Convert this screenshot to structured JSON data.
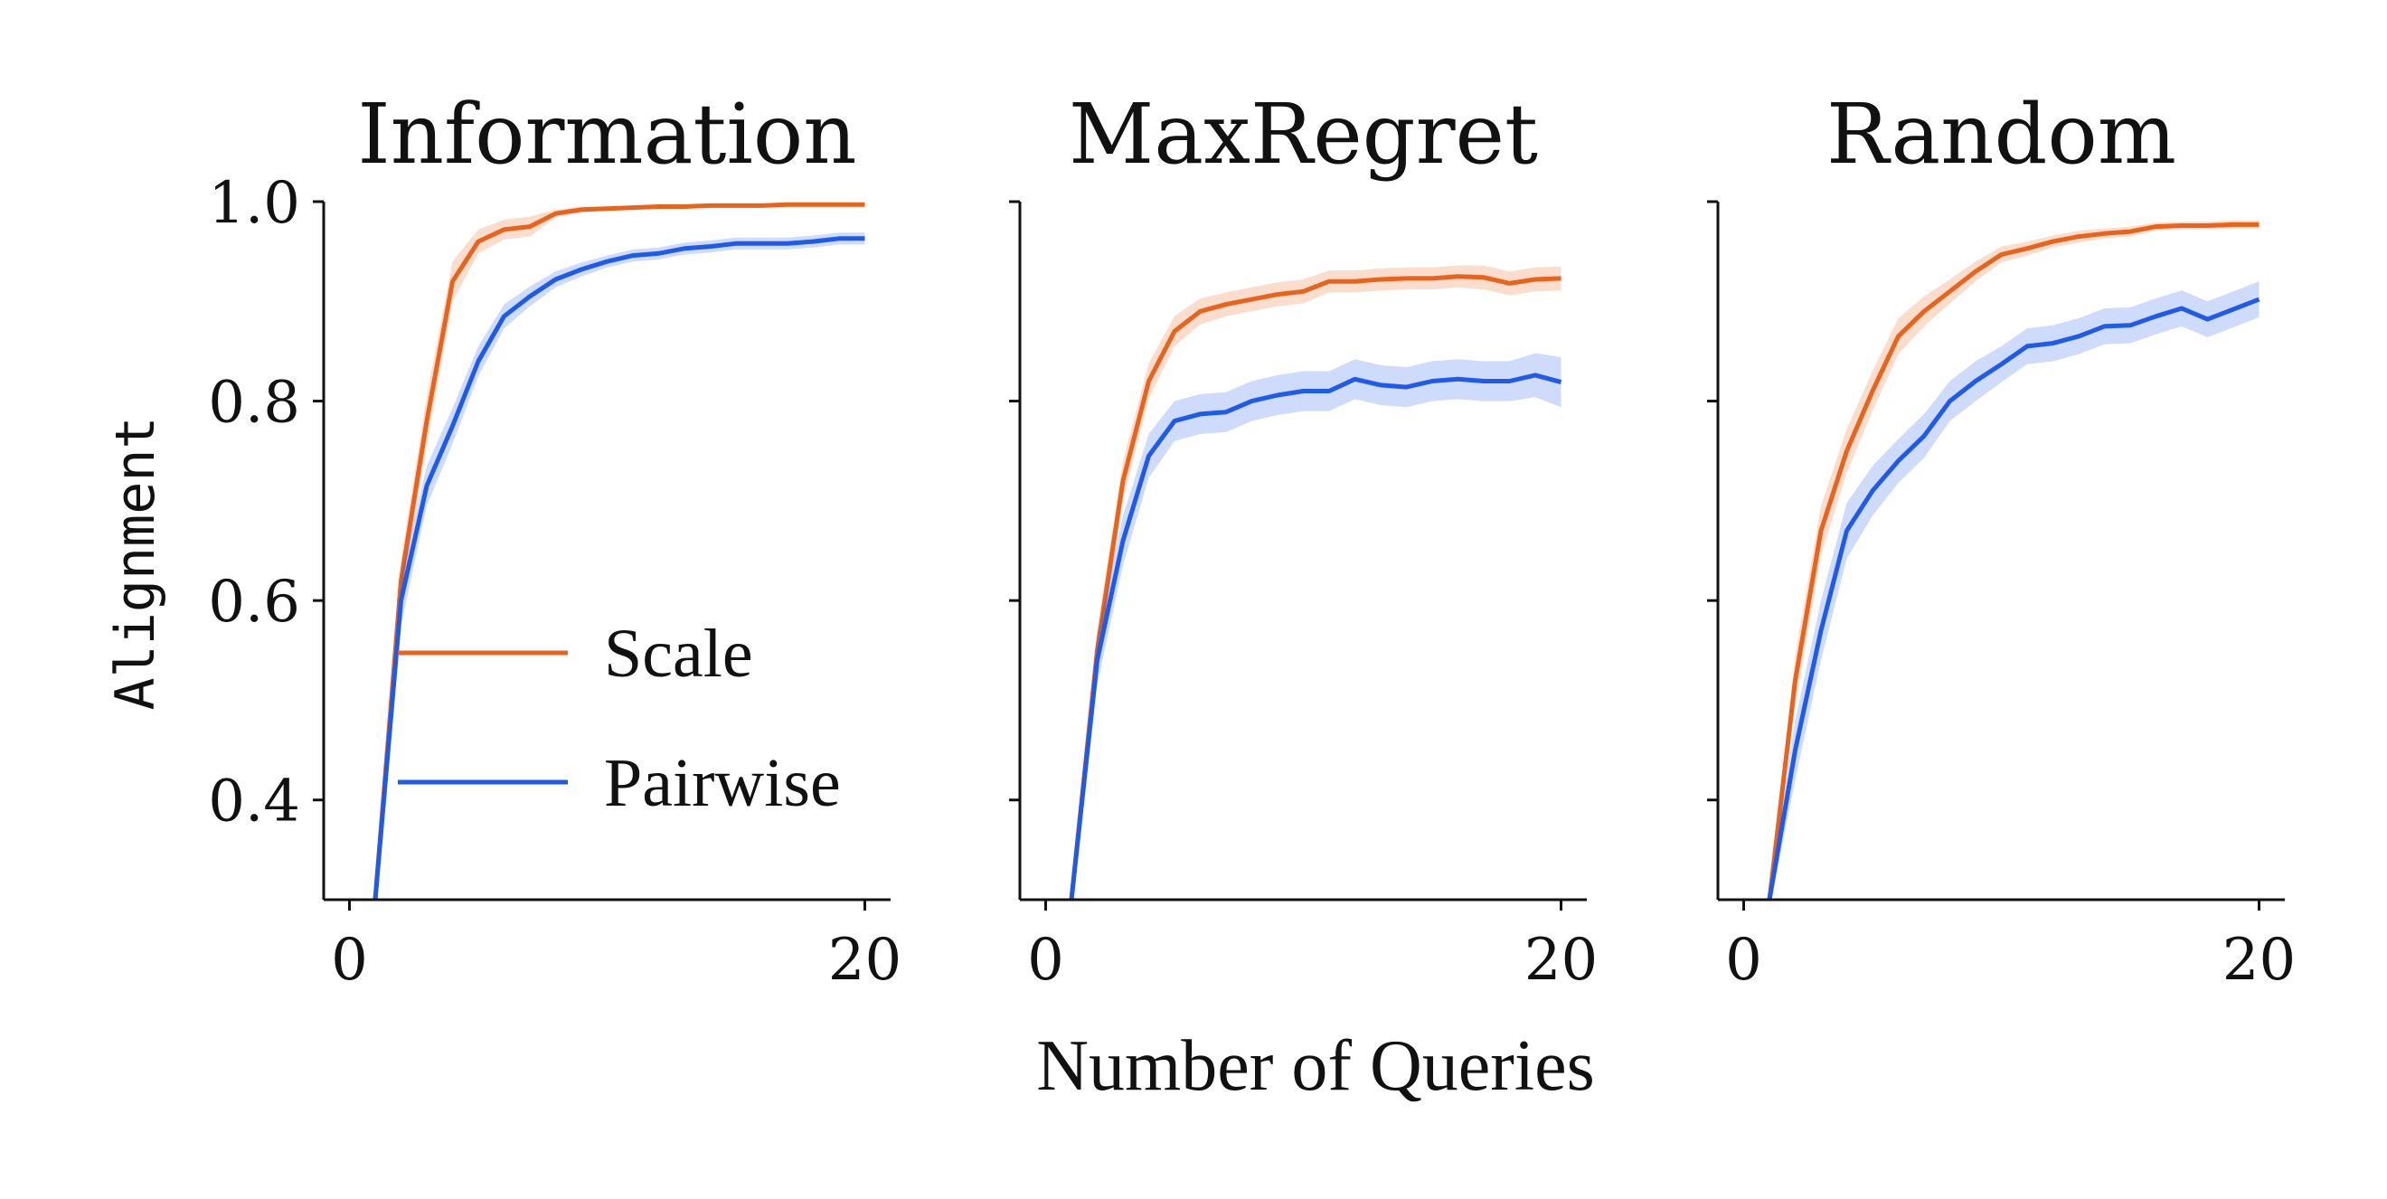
{
  "chart_data": {
    "type": "line",
    "shared_xlabel": "Number of Queries",
    "shared_ylabel": "Alignment",
    "ylim": [
      0.3,
      1.0
    ],
    "xlim": [
      -1,
      21
    ],
    "yticks": [
      0.4,
      0.6,
      0.8,
      1.0
    ],
    "ytick_labels": [
      "0.4",
      "0.6",
      "0.8",
      "1.0"
    ],
    "xticks": [
      0,
      20
    ],
    "xtick_labels": [
      "0",
      "20"
    ],
    "legend": {
      "location": "lower-right of first panel",
      "entries": [
        "Scale",
        "Pairwise"
      ]
    },
    "colors": {
      "Scale": "#e8631c",
      "Pairwise": "#1f5ae8"
    },
    "x": [
      1,
      2,
      3,
      4,
      5,
      6,
      7,
      8,
      9,
      10,
      11,
      12,
      13,
      14,
      15,
      16,
      17,
      18,
      19,
      20
    ],
    "panels": [
      {
        "title": "Information",
        "series": [
          {
            "name": "Scale",
            "values": [
              0.3,
              0.62,
              0.78,
              0.92,
              0.96,
              0.972,
              0.975,
              0.988,
              0.992,
              0.993,
              0.994,
              0.995,
              0.995,
              0.996,
              0.996,
              0.996,
              0.997,
              0.997,
              0.997,
              0.997
            ],
            "band": [
              0.005,
              0.02,
              0.025,
              0.02,
              0.012,
              0.01,
              0.01,
              0.004,
              0.003,
              0.002,
              0.002,
              0.002,
              0.002,
              0.002,
              0.002,
              0.002,
              0.002,
              0.002,
              0.002,
              0.002
            ]
          },
          {
            "name": "Pairwise",
            "values": [
              0.3,
              0.6,
              0.715,
              0.775,
              0.84,
              0.885,
              0.905,
              0.922,
              0.932,
              0.94,
              0.946,
              0.948,
              0.953,
              0.955,
              0.958,
              0.958,
              0.958,
              0.96,
              0.963,
              0.963
            ],
            "band": [
              0.005,
              0.025,
              0.02,
              0.018,
              0.015,
              0.012,
              0.01,
              0.008,
              0.007,
              0.006,
              0.006,
              0.006,
              0.006,
              0.006,
              0.006,
              0.006,
              0.006,
              0.006,
              0.006,
              0.006
            ]
          }
        ]
      },
      {
        "title": "MaxRegret",
        "series": [
          {
            "name": "Scale",
            "values": [
              0.3,
              0.55,
              0.72,
              0.82,
              0.87,
              0.89,
              0.897,
              0.902,
              0.907,
              0.91,
              0.92,
              0.92,
              0.922,
              0.923,
              0.923,
              0.925,
              0.924,
              0.918,
              0.922,
              0.923
            ],
            "band": [
              0.01,
              0.02,
              0.02,
              0.018,
              0.015,
              0.013,
              0.012,
              0.012,
              0.012,
              0.012,
              0.011,
              0.011,
              0.011,
              0.011,
              0.011,
              0.011,
              0.012,
              0.012,
              0.012,
              0.012
            ]
          },
          {
            "name": "Pairwise",
            "values": [
              0.3,
              0.54,
              0.66,
              0.745,
              0.78,
              0.787,
              0.789,
              0.8,
              0.806,
              0.81,
              0.81,
              0.822,
              0.816,
              0.814,
              0.82,
              0.822,
              0.82,
              0.82,
              0.826,
              0.819
            ],
            "band": [
              0.01,
              0.025,
              0.025,
              0.022,
              0.02,
              0.02,
              0.02,
              0.02,
              0.02,
              0.02,
              0.02,
              0.02,
              0.02,
              0.02,
              0.02,
              0.02,
              0.02,
              0.02,
              0.022,
              0.025
            ]
          }
        ]
      },
      {
        "title": "Random",
        "series": [
          {
            "name": "Scale",
            "values": [
              0.3,
              0.52,
              0.67,
              0.75,
              0.81,
              0.865,
              0.89,
              0.91,
              0.93,
              0.947,
              0.953,
              0.96,
              0.965,
              0.968,
              0.97,
              0.975,
              0.976,
              0.976,
              0.977,
              0.977
            ],
            "band": [
              0.01,
              0.025,
              0.025,
              0.022,
              0.02,
              0.018,
              0.015,
              0.012,
              0.01,
              0.008,
              0.007,
              0.006,
              0.006,
              0.005,
              0.005,
              0.004,
              0.004,
              0.004,
              0.004,
              0.004
            ]
          },
          {
            "name": "Pairwise",
            "values": [
              0.3,
              0.45,
              0.57,
              0.67,
              0.71,
              0.74,
              0.765,
              0.8,
              0.82,
              0.837,
              0.855,
              0.858,
              0.865,
              0.875,
              0.876,
              0.885,
              0.893,
              0.882,
              0.892,
              0.902
            ],
            "band": [
              0.01,
              0.03,
              0.03,
              0.028,
              0.025,
              0.022,
              0.022,
              0.02,
              0.02,
              0.018,
              0.018,
              0.018,
              0.018,
              0.018,
              0.018,
              0.018,
              0.018,
              0.018,
              0.018,
              0.018
            ]
          }
        ]
      }
    ]
  }
}
